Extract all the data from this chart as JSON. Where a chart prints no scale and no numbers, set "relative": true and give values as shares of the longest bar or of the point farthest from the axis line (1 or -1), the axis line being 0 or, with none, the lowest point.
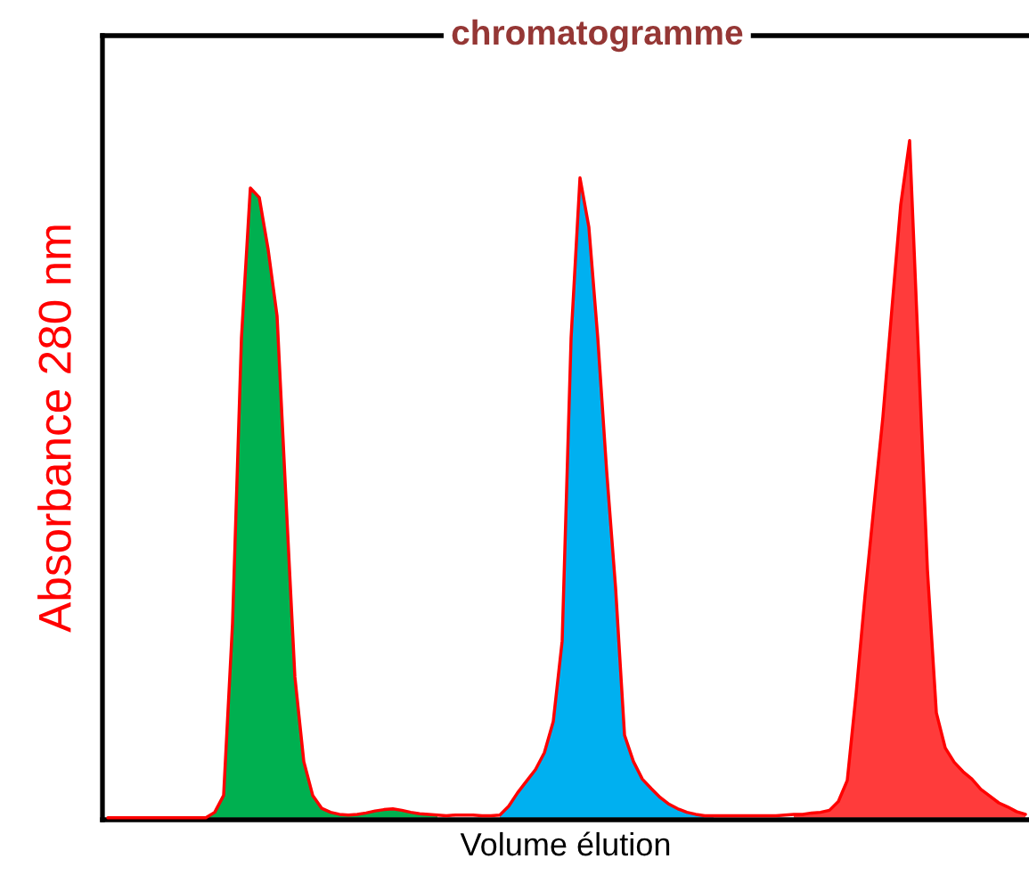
{
  "chart_data": {
    "type": "area",
    "relative": true,
    "title": "chromatogramme",
    "xlabel": "Volume élution",
    "ylabel": "Absorbance 280 nm",
    "tick_labels": false,
    "legend": false,
    "categories": [
      null,
      null,
      null,
      null,
      null,
      null,
      null,
      null,
      null,
      null,
      null,
      null,
      null,
      null,
      null,
      null,
      null,
      null,
      null,
      null,
      null,
      null,
      null,
      null,
      null,
      null,
      null,
      null,
      null,
      null,
      null,
      null,
      null,
      null,
      null,
      null,
      null,
      null,
      null,
      null,
      null,
      null,
      null,
      null,
      null,
      null,
      null,
      null,
      null,
      null,
      null,
      null,
      null,
      null,
      null,
      null,
      null,
      null,
      null,
      null,
      null,
      null,
      null,
      null,
      null,
      null,
      null,
      null,
      null,
      null,
      null,
      null,
      null,
      null,
      null,
      null,
      null,
      null,
      null,
      null,
      null,
      null,
      null,
      null,
      null,
      null,
      null,
      null,
      null,
      null,
      null,
      null,
      null,
      null,
      null,
      null,
      null,
      null,
      null,
      null,
      null,
      null,
      null,
      null
    ],
    "series": [
      {
        "color": "#00b050",
        "values": [
          null,
          null,
          null,
          null,
          null,
          null,
          null,
          null,
          null,
          null,
          null,
          0,
          0.008,
          0.033,
          0.287,
          0.708,
          0.93,
          0.916,
          0.839,
          0.741,
          0.471,
          0.208,
          0.083,
          0.033,
          0.014,
          0.008,
          0.005,
          0.004,
          0.005,
          0.007,
          0.01,
          0.012,
          0.013,
          0.011,
          0.008,
          0.006,
          0.005,
          0.004,
          null,
          null,
          null,
          null,
          null,
          null,
          null,
          null,
          null,
          null,
          null,
          null,
          null,
          null,
          null,
          null,
          null,
          null,
          null,
          null,
          null,
          null,
          null,
          null,
          null,
          null,
          null,
          null,
          null,
          null,
          null,
          null,
          null,
          null,
          null,
          null,
          null,
          null,
          null,
          null,
          null,
          null,
          null,
          null,
          null,
          null,
          null,
          null,
          null,
          null,
          null,
          null,
          null,
          null,
          null,
          null,
          null,
          null,
          null,
          null,
          null,
          null,
          null,
          null,
          null,
          null
        ]
      },
      {
        "color": "#00b0f0",
        "values": [
          null,
          null,
          null,
          null,
          null,
          null,
          null,
          null,
          null,
          null,
          null,
          null,
          null,
          null,
          null,
          null,
          null,
          null,
          null,
          null,
          null,
          null,
          null,
          null,
          null,
          null,
          null,
          null,
          null,
          null,
          null,
          null,
          null,
          null,
          null,
          null,
          null,
          null,
          null,
          null,
          null,
          null,
          null,
          null,
          0.004,
          0.017,
          0.037,
          0.054,
          0.071,
          0.096,
          0.142,
          0.261,
          0.708,
          0.945,
          0.872,
          0.708,
          0.511,
          0.339,
          0.122,
          0.083,
          0.057,
          0.043,
          0.03,
          0.02,
          0.013,
          0.008,
          0.005,
          0.003,
          0.003,
          null,
          null,
          null,
          null,
          null,
          null,
          null,
          null,
          null,
          null,
          null,
          null,
          null,
          null,
          null,
          null,
          null,
          null,
          null,
          null,
          null,
          null,
          null,
          null,
          null,
          null,
          null,
          null,
          null,
          null,
          null,
          null,
          null,
          null,
          null
        ]
      },
      {
        "color": "#ff3b3b",
        "values": [
          null,
          null,
          null,
          null,
          null,
          null,
          null,
          null,
          null,
          null,
          null,
          null,
          null,
          null,
          null,
          null,
          null,
          null,
          null,
          null,
          null,
          null,
          null,
          null,
          null,
          null,
          null,
          null,
          null,
          null,
          null,
          null,
          null,
          null,
          null,
          null,
          null,
          null,
          null,
          null,
          null,
          null,
          null,
          null,
          null,
          null,
          null,
          null,
          null,
          null,
          null,
          null,
          null,
          null,
          null,
          null,
          null,
          null,
          null,
          null,
          null,
          null,
          null,
          null,
          null,
          null,
          null,
          null,
          null,
          null,
          null,
          null,
          null,
          null,
          null,
          null,
          null,
          0.005,
          0.005,
          0.007,
          0.008,
          0.011,
          0.024,
          0.055,
          0.184,
          0.329,
          0.461,
          0.592,
          0.75,
          0.905,
          1,
          0.682,
          0.366,
          0.155,
          0.103,
          0.082,
          0.068,
          0.057,
          0.042,
          0.032,
          0.022,
          0.016,
          0.009,
          0.005
        ]
      },
      {
        "type": "line",
        "color": "#ff0000",
        "values": [
          0,
          0,
          0,
          0,
          0,
          0,
          0,
          0,
          0,
          0,
          0,
          0,
          0.008,
          0.033,
          0.287,
          0.708,
          0.93,
          0.916,
          0.839,
          0.741,
          0.471,
          0.208,
          0.083,
          0.033,
          0.014,
          0.008,
          0.005,
          0.004,
          0.005,
          0.007,
          0.01,
          0.012,
          0.013,
          0.011,
          0.008,
          0.006,
          0.005,
          0.004,
          0.003,
          0.004,
          0.004,
          0.004,
          0.003,
          0.003,
          0.004,
          0.017,
          0.037,
          0.054,
          0.071,
          0.096,
          0.142,
          0.261,
          0.708,
          0.945,
          0.872,
          0.708,
          0.511,
          0.339,
          0.122,
          0.083,
          0.057,
          0.043,
          0.03,
          0.02,
          0.013,
          0.008,
          0.005,
          0.003,
          0.003,
          0.003,
          0.003,
          0.003,
          0.003,
          0.003,
          0.003,
          0.003,
          0.004,
          0.005,
          0.005,
          0.007,
          0.008,
          0.011,
          0.024,
          0.055,
          0.184,
          0.329,
          0.461,
          0.592,
          0.75,
          0.905,
          1,
          0.682,
          0.366,
          0.155,
          0.103,
          0.082,
          0.068,
          0.057,
          0.042,
          0.032,
          0.022,
          0.016,
          0.009,
          0.005
        ]
      }
    ]
  }
}
